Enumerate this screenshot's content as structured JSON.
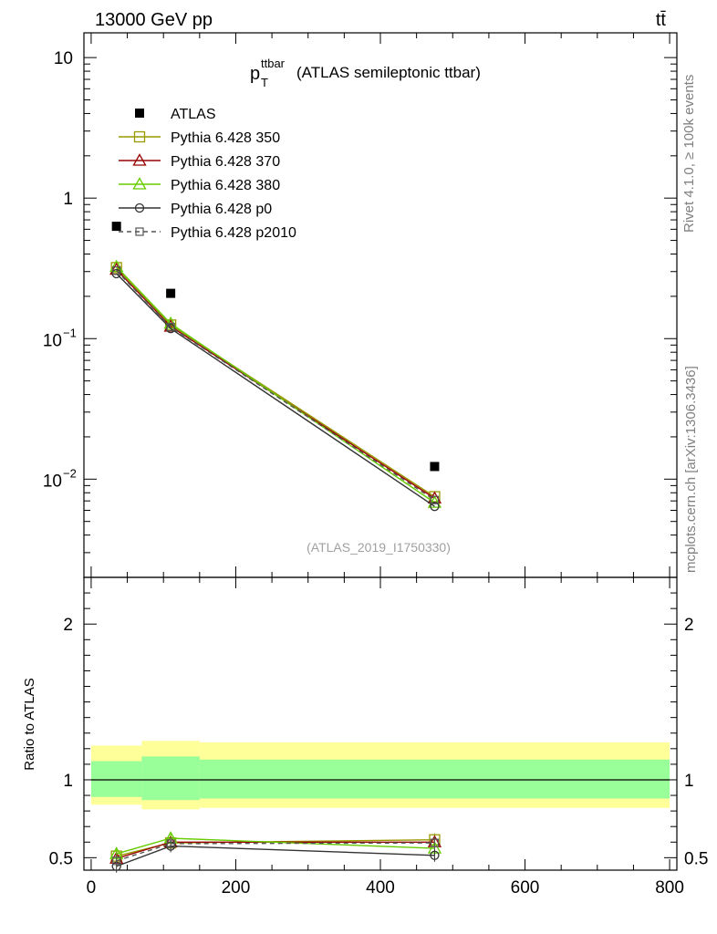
{
  "header": {
    "energy_label": "13000 GeV pp",
    "process_label": "tt̄"
  },
  "side_text": {
    "rivet": "Rivet 4.1.0, ≥ 100k events",
    "source": "mcplots.cern.ch [arXiv:1306.3436]"
  },
  "chart_data": {
    "type": "line",
    "title": "p_T^ttbar (ATLAS semileptonic ttbar)",
    "title_main": "p",
    "title_sup": "ttbar",
    "title_sub": "T",
    "title_rest": "(ATLAS semileptonic ttbar)",
    "analysis_id": "(ATLAS_2019_I1750330)",
    "xlim": [
      -10,
      810
    ],
    "x_ticks": [
      0,
      200,
      400,
      600,
      800
    ],
    "main_panel": {
      "yscale": "log",
      "ylim": [
        0.002,
        15
      ],
      "y_tick_labels": [
        {
          "value": 10,
          "label": "10"
        },
        {
          "value": 1,
          "label": "1"
        },
        {
          "value": 0.1,
          "base": "10",
          "exp": "−1"
        },
        {
          "value": 0.01,
          "base": "10",
          "exp": "−2"
        }
      ]
    },
    "ratio_panel": {
      "ylabel": "Ratio to ATLAS",
      "ylim": [
        0.42,
        2.3
      ],
      "y_ticks": [
        0.5,
        1,
        2
      ],
      "y_tick_labels": [
        "0.5",
        "1",
        "2"
      ]
    },
    "bins": [
      {
        "lo": 0,
        "hi": 70
      },
      {
        "lo": 70,
        "hi": 150
      },
      {
        "lo": 150,
        "hi": 800
      }
    ],
    "band_inner": [
      [
        0.89,
        1.12
      ],
      [
        0.87,
        1.15
      ],
      [
        0.88,
        1.13
      ]
    ],
    "band_outer": [
      [
        0.84,
        1.22
      ],
      [
        0.81,
        1.25
      ],
      [
        0.82,
        1.24
      ]
    ],
    "data": {
      "name": "ATLAS",
      "x": [
        35,
        110,
        475
      ],
      "y": [
        0.63,
        0.21,
        0.0123
      ]
    },
    "series": [
      {
        "name": "Pythia 6.428 350",
        "color": "#999900",
        "marker": "square-open",
        "dash": false,
        "x": [
          35,
          110,
          475
        ],
        "y": [
          0.32,
          0.125,
          0.0075
        ],
        "ratio": [
          0.51,
          0.595,
          0.615
        ]
      },
      {
        "name": "Pythia 6.428 370",
        "color": "#990000",
        "marker": "triangle-open",
        "dash": false,
        "x": [
          35,
          110,
          475
        ],
        "y": [
          0.31,
          0.122,
          0.0073
        ],
        "ratio": [
          0.495,
          0.6,
          0.6
        ]
      },
      {
        "name": "Pythia 6.428 380",
        "color": "#66cc00",
        "marker": "triangle-open",
        "dash": false,
        "x": [
          35,
          110,
          475
        ],
        "y": [
          0.325,
          0.128,
          0.0068
        ],
        "ratio": [
          0.525,
          0.625,
          0.56
        ]
      },
      {
        "name": "Pythia 6.428 p0",
        "color": "#333333",
        "marker": "circle-open",
        "dash": false,
        "x": [
          35,
          110,
          475
        ],
        "y": [
          0.29,
          0.118,
          0.0064
        ],
        "ratio": [
          0.445,
          0.575,
          0.515
        ]
      },
      {
        "name": "Pythia 6.428 p2010",
        "color": "#555555",
        "marker": "square-small-open",
        "dash": true,
        "x": [
          35,
          110,
          475
        ],
        "y": [
          0.305,
          0.121,
          0.0071
        ],
        "ratio": [
          0.48,
          0.59,
          0.595
        ]
      }
    ]
  }
}
